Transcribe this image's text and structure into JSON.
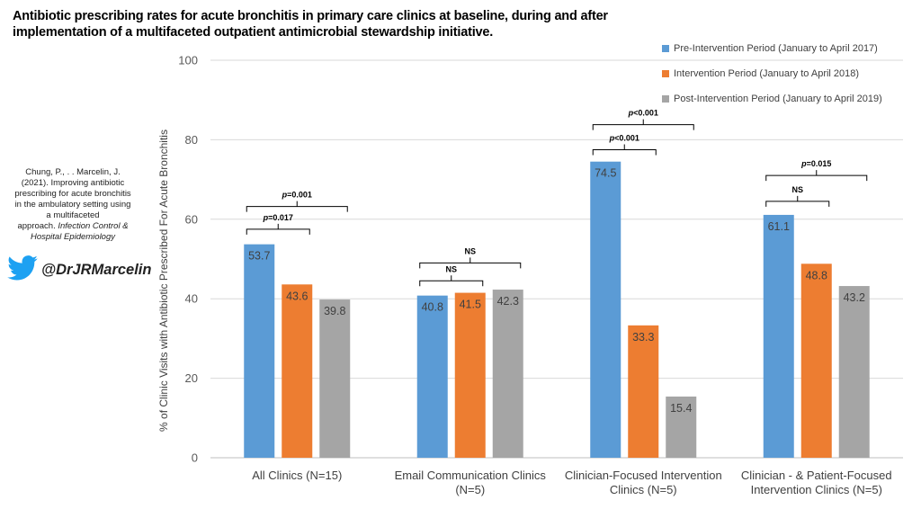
{
  "title": "Antibiotic prescribing rates for acute bronchitis in primary care clinics at baseline, during and after implementation of a multifaceted outpatient antimicrobial stewardship initiative.",
  "citation": {
    "line1": "Chung, P., . . Marcelin, J.",
    "line2": "(2021). Improving antibiotic",
    "line3": "prescribing for acute bronchitis",
    "line4": "in the ambulatory setting using",
    "line5": "a multifaceted",
    "line6": "approach.",
    "journal1": "Infection Control &",
    "journal2": "Hospital Epidemiology"
  },
  "twitter": {
    "handle": "@DrJRMarcelin",
    "icon": "twitter-bird-icon",
    "color": "#1DA1F2"
  },
  "chart_data": {
    "type": "bar",
    "title": "Antibiotic prescribing rates for acute bronchitis in primary care clinics at baseline, during and after implementation of a multifaceted outpatient antimicrobial stewardship initiative.",
    "ylabel": "% of Clinic Visits with Antibiotic Prescribed For Acute Bronchitis",
    "xlabel": "",
    "ylim": [
      0,
      100
    ],
    "yticks": [
      0,
      20,
      40,
      60,
      80,
      100
    ],
    "grid": true,
    "legend_position": "top-right",
    "categories": [
      [
        "All Clinics (N=15)"
      ],
      [
        "Email Communication Clinics",
        "(N=5)"
      ],
      [
        "Clinician-Focused Intervention",
        "Clinics (N=5)"
      ],
      [
        "Clinician - & Patient-Focused",
        "Intervention Clinics (N=5)"
      ]
    ],
    "series": [
      {
        "name": "Pre-Intervention Period (January to April 2017)",
        "color": "#5B9BD5",
        "values": [
          53.7,
          40.8,
          74.5,
          61.1
        ],
        "labels": [
          "53.7",
          "40.8",
          "74.5",
          "61.1"
        ]
      },
      {
        "name": "Intervention Period (January to April 2018)",
        "color": "#ED7D31",
        "values": [
          43.6,
          41.5,
          33.3,
          48.8
        ],
        "labels": [
          "43.6",
          "41.5",
          "33.3",
          "48.8"
        ]
      },
      {
        "name": "Post-Intervention Period (January to April 2019)",
        "color": "#A5A5A5",
        "values": [
          39.8,
          42.3,
          15.4,
          43.2
        ],
        "labels": [
          "39.8",
          "42.3",
          "15.4",
          "43.2"
        ]
      }
    ],
    "annotations": [
      {
        "group": 0,
        "from": 0,
        "to": 1,
        "level": 57.5,
        "label": "p=0.017",
        "p": "p",
        "rest": "=0.017"
      },
      {
        "group": 0,
        "from": 0,
        "to": 2,
        "level": 63.2,
        "label": "p=0.001",
        "p": "p",
        "rest": "=0.001"
      },
      {
        "group": 1,
        "from": 0,
        "to": 1,
        "level": 44.5,
        "label": "NS",
        "p": "",
        "rest": "NS"
      },
      {
        "group": 1,
        "from": 0,
        "to": 2,
        "level": 49.0,
        "label": "NS",
        "p": "",
        "rest": "NS"
      },
      {
        "group": 2,
        "from": 0,
        "to": 1,
        "level": 77.5,
        "label": "p<0.001",
        "p": "p",
        "rest": "<0.001"
      },
      {
        "group": 2,
        "from": 0,
        "to": 2,
        "level": 83.8,
        "label": "p<0.001",
        "p": "p",
        "rest": "<0.001"
      },
      {
        "group": 3,
        "from": 0,
        "to": 1,
        "level": 64.5,
        "label": "NS",
        "p": "",
        "rest": "NS"
      },
      {
        "group": 3,
        "from": 0,
        "to": 2,
        "level": 71.0,
        "label": "p=0.015",
        "p": "p",
        "rest": "=0.015"
      }
    ]
  }
}
